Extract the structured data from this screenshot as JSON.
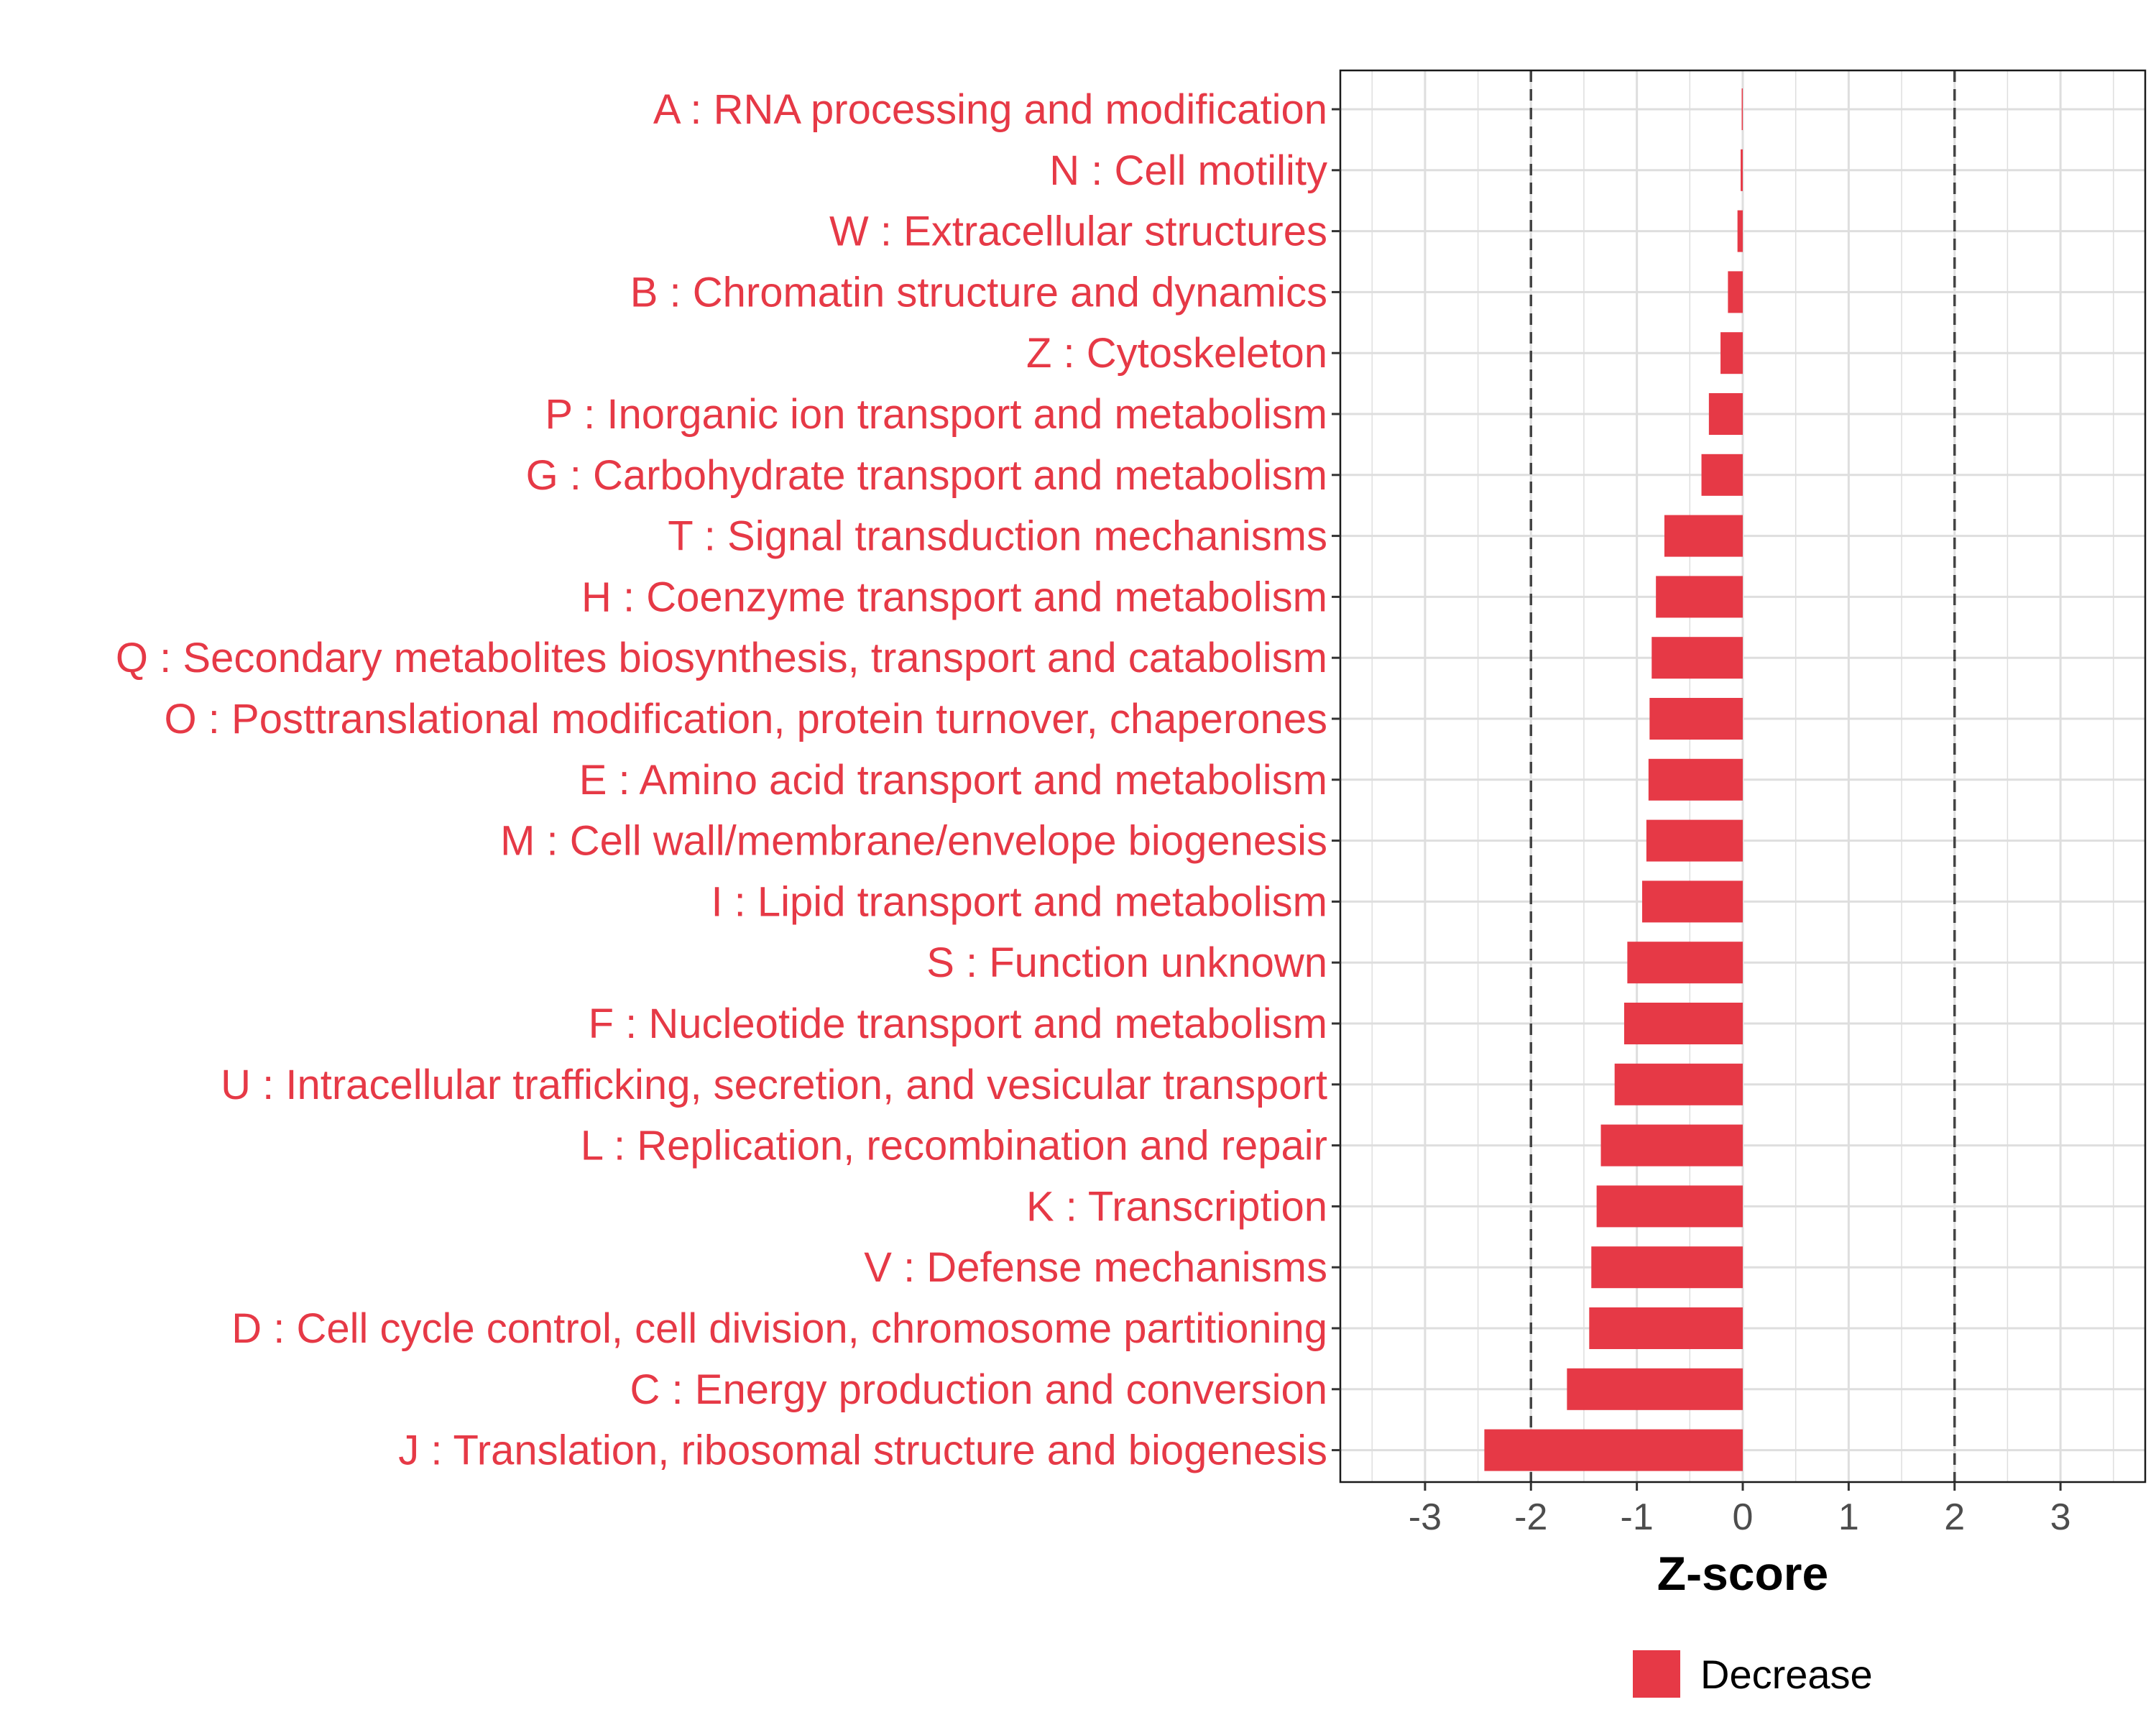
{
  "chart_data": {
    "type": "bar",
    "orientation": "horizontal",
    "categories": [
      "A : RNA processing and modification",
      "N : Cell motility",
      "W : Extracellular structures",
      "B : Chromatin structure and dynamics",
      "Z : Cytoskeleton",
      "P : Inorganic ion transport and metabolism",
      "G : Carbohydrate transport and metabolism",
      "T : Signal transduction mechanisms",
      "H : Coenzyme transport and metabolism",
      "Q : Secondary metabolites biosynthesis, transport and catabolism",
      "O : Posttranslational modification, protein turnover, chaperones",
      "E : Amino acid transport and metabolism",
      "M : Cell wall/membrane/envelope biogenesis",
      "I : Lipid transport and metabolism",
      "S : Function unknown",
      "F : Nucleotide transport and metabolism",
      "U : Intracellular trafficking, secretion, and vesicular transport",
      "L : Replication, recombination and repair",
      "K : Transcription",
      "V : Defense mechanisms",
      "D : Cell cycle control, cell division, chromosome partitioning",
      "C : Energy production and conversion",
      "J : Translation, ribosomal structure and biogenesis"
    ],
    "values": [
      -0.01,
      -0.02,
      -0.05,
      -0.14,
      -0.21,
      -0.32,
      -0.39,
      -0.74,
      -0.82,
      -0.86,
      -0.88,
      -0.89,
      -0.91,
      -0.95,
      -1.09,
      -1.12,
      -1.21,
      -1.34,
      -1.38,
      -1.43,
      -1.45,
      -1.66,
      -2.44
    ],
    "series_name": "Decrease",
    "bar_color": "#E63946",
    "xlabel": "Z-score",
    "ylabel": "",
    "xlim": [
      -3.8,
      3.8
    ],
    "xticks": [
      -3,
      -2,
      -1,
      0,
      1,
      2,
      3
    ],
    "reference_lines": [
      -2,
      2
    ],
    "grid": true,
    "legend_position": "bottom"
  }
}
